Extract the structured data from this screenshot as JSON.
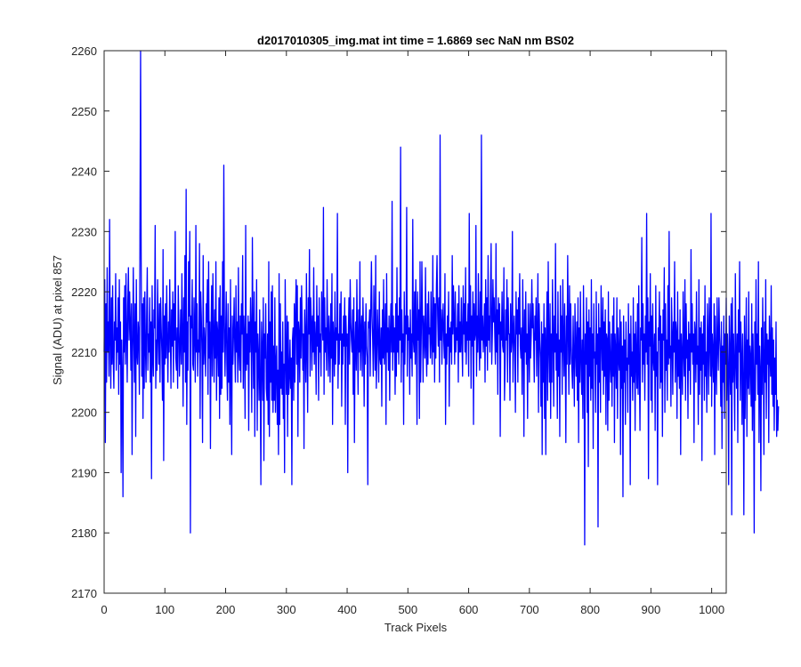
{
  "chart_data": {
    "type": "line",
    "title": "d2017010305_img.mat int time = 1.6869 sec  NaN nm BS02",
    "xlabel": "Track Pixels",
    "ylabel": "Signal (ADU) at pixel 857",
    "xlim": [
      0,
      1024
    ],
    "ylim": [
      2170,
      2260
    ],
    "xticks": [
      0,
      100,
      200,
      300,
      400,
      500,
      600,
      700,
      800,
      900,
      1000
    ],
    "yticks": [
      2170,
      2180,
      2190,
      2200,
      2210,
      2220,
      2230,
      2240,
      2250,
      2260
    ],
    "grid": false,
    "series": [
      {
        "color": "#0000ff",
        "x_start": 0,
        "x_step": 1,
        "values": [
          2210,
          2222,
          2195,
          2218,
          2205,
          2224,
          2210,
          2215,
          2206,
          2232,
          2212,
          2204,
          2219,
          2208,
          2221,
          2209,
          2204,
          2215,
          2212,
          2223,
          2207,
          2214,
          2210,
          2219,
          2203,
          2222,
          2208,
          2215,
          2190,
          2212,
          2205,
          2186,
          2219,
          2210,
          2221,
          2208,
          2223,
          2213,
          2205,
          2218,
          2224,
          2212,
          2220,
          2215,
          2207,
          2218,
          2193,
          2210,
          2224,
          2212,
          2205,
          2218,
          2196,
          2222,
          2210,
          2208,
          2215,
          2213,
          2203,
          2230,
          2260,
          2225,
          2206,
          2218,
          2199,
          2219,
          2204,
          2220,
          2211,
          2205,
          2216,
          2224,
          2207,
          2213,
          2210,
          2219,
          2205,
          2215,
          2189,
          2221,
          2210,
          2206,
          2217,
          2214,
          2231,
          2204,
          2212,
          2207,
          2222,
          2213,
          2208,
          2218,
          2205,
          2219,
          2214,
          2210,
          2202,
          2227,
          2192,
          2216,
          2208,
          2218,
          2209,
          2221,
          2212,
          2205,
          2215,
          2210,
          2222,
          2213,
          2204,
          2217,
          2211,
          2220,
          2205,
          2218,
          2212,
          2230,
          2209,
          2207,
          2214,
          2204,
          2221,
          2215,
          2206,
          2211,
          2217,
          2208,
          2223,
          2213,
          2201,
          2219,
          2210,
          2226,
          2205,
          2237,
          2198,
          2215,
          2207,
          2225,
          2216,
          2230,
          2180,
          2216,
          2214,
          2222,
          2208,
          2207,
          2219,
          2213,
          2205,
          2231,
          2210,
          2218,
          2206,
          2212,
          2210,
          2228,
          2199,
          2220,
          2216,
          2210,
          2195,
          2226,
          2208,
          2214,
          2211,
          2206,
          2218,
          2215,
          2222,
          2203,
          2225,
          2209,
          2215,
          2194,
          2213,
          2221,
          2206,
          2223,
          2213,
          2205,
          2217,
          2209,
          2225,
          2202,
          2215,
          2213,
          2206,
          2219,
          2199,
          2221,
          2203,
          2216,
          2204,
          2225,
          2210,
          2241,
          2215,
          2206,
          2213,
          2220,
          2208,
          2202,
          2218,
          2205,
          2214,
          2198,
          2222,
          2206,
          2193,
          2216,
          2208,
          2213,
          2219,
          2211,
          2205,
          2221,
          2210,
          2215,
          2205,
          2224,
          2210,
          2207,
          2216,
          2205,
          2218,
          2213,
          2226,
          2204,
          2216,
          2212,
          2199,
          2231,
          2207,
          2213,
          2208,
          2216,
          2197,
          2215,
          2210,
          2219,
          2213,
          2200,
          2229,
          2213,
          2204,
          2220,
          2196,
          2215,
          2210,
          2222,
          2197,
          2213,
          2209,
          2202,
          2217,
          2205,
          2188,
          2215,
          2210,
          2202,
          2219,
          2192,
          2213,
          2209,
          2218,
          2204,
          2202,
          2213,
          2198,
          2225,
          2196,
          2215,
          2205,
          2220,
          2202,
          2221,
          2200,
          2211,
          2202,
          2219,
          2200,
          2208,
          2211,
          2198,
          2207,
          2193,
          2223,
          2198,
          2218,
          2204,
          2210,
          2203,
          2215,
          2199,
          2208,
          2190,
          2222,
          2210,
          2203,
          2216,
          2196,
          2215,
          2203,
          2206,
          2212,
          2204,
          2209,
          2188,
          2212,
          2214,
          2202,
          2218,
          2205,
          2216,
          2222,
          2208,
          2221,
          2196,
          2215,
          2213,
          2205,
          2219,
          2209,
          2221,
          2215,
          2207,
          2213,
          2194,
          2217,
          2212,
          2205,
          2223,
          2210,
          2200,
          2219,
          2213,
          2227,
          2206,
          2219,
          2215,
          2207,
          2216,
          2210,
          2224,
          2208,
          2215,
          2212,
          2203,
          2221,
          2211,
          2216,
          2202,
          2219,
          2210,
          2213,
          2206,
          2220,
          2215,
          2212,
          2234,
          2203,
          2219,
          2210,
          2214,
          2207,
          2222,
          2213,
          2206,
          2216,
          2212,
          2205,
          2218,
          2209,
          2223,
          2198,
          2215,
          2212,
          2206,
          2220,
          2208,
          2214,
          2212,
          2233,
          2204,
          2213,
          2208,
          2218,
          2212,
          2220,
          2201,
          2213,
          2208,
          2216,
          2211,
          2219,
          2198,
          2216,
          2211,
          2213,
          2190,
          2213,
          2219,
          2208,
          2222,
          2215,
          2212,
          2210,
          2217,
          2203,
          2219,
          2195,
          2211,
          2215,
          2207,
          2222,
          2212,
          2203,
          2217,
          2210,
          2225,
          2207,
          2213,
          2216,
          2206,
          2219,
          2213,
          2201,
          2215,
          2208,
          2218,
          2211,
          2209,
          2188,
          2215,
          2214,
          2217,
          2206,
          2218,
          2225,
          2216,
          2212,
          2206,
          2221,
          2213,
          2207,
          2226,
          2204,
          2210,
          2217,
          2212,
          2205,
          2220,
          2209,
          2208,
          2214,
          2201,
          2217,
          2209,
          2222,
          2208,
          2212,
          2218,
          2198,
          2223,
          2210,
          2214,
          2207,
          2216,
          2202,
          2213,
          2218,
          2210,
          2235,
          2207,
          2216,
          2210,
          2214,
          2203,
          2218,
          2206,
          2224,
          2210,
          2216,
          2208,
          2219,
          2212,
          2244,
          2205,
          2217,
          2210,
          2213,
          2198,
          2220,
          2208,
          2216,
          2213,
          2234,
          2206,
          2216,
          2212,
          2214,
          2203,
          2217,
          2209,
          2213,
          2206,
          2232,
          2212,
          2210,
          2220,
          2208,
          2222,
          2214,
          2198,
          2220,
          2212,
          2217,
          2199,
          2225,
          2205,
          2213,
          2225,
          2216,
          2205,
          2216,
          2213,
          2209,
          2224,
          2211,
          2206,
          2218,
          2208,
          2220,
          2213,
          2214,
          2209,
          2220,
          2212,
          2208,
          2226,
          2210,
          2219,
          2205,
          2218,
          2209,
          2221,
          2226,
          2216,
          2211,
          2219,
          2205,
          2246,
          2212,
          2217,
          2208,
          2215,
          2218,
          2212,
          2209,
          2223,
          2198,
          2213,
          2208,
          2216,
          2211,
          2220,
          2201,
          2214,
          2210,
          2215,
          2208,
          2226,
          2213,
          2221,
          2215,
          2208,
          2220,
          2210,
          2214,
          2212,
          2218,
          2205,
          2221,
          2210,
          2215,
          2210,
          2219,
          2212,
          2206,
          2221,
          2213,
          2218,
          2210,
          2224,
          2208,
          2215,
          2212,
          2218,
          2206,
          2233,
          2212,
          2221,
          2204,
          2216,
          2211,
          2220,
          2198,
          2218,
          2212,
          2213,
          2231,
          2206,
          2216,
          2210,
          2223,
          2213,
          2207,
          2220,
          2209,
          2246,
          2212,
          2216,
          2210,
          2213,
          2218,
          2205,
          2222,
          2211,
          2219,
          2207,
          2226,
          2212,
          2216,
          2210,
          2220,
          2228,
          2208,
          2213,
          2222,
          2215,
          2219,
          2213,
          2208,
          2228,
          2210,
          2217,
          2203,
          2219,
          2213,
          2218,
          2196,
          2215,
          2212,
          2220,
          2211,
          2210,
          2224,
          2202,
          2208,
          2217,
          2212,
          2222,
          2205,
          2219,
          2213,
          2213,
          2202,
          2218,
          2210,
          2212,
          2230,
          2205,
          2213,
          2216,
          2210,
          2200,
          2220,
          2213,
          2217,
          2205,
          2219,
          2213,
          2223,
          2211,
          2209,
          2214,
          2203,
          2222,
          2213,
          2196,
          2217,
          2210,
          2220,
          2208,
          2213,
          2199,
          2218,
          2212,
          2205,
          2218,
          2209,
          2213,
          2222,
          2214,
          2218,
          2212,
          2205,
          2216,
          2212,
          2219,
          2206,
          2213,
          2223,
          2200,
          2218,
          2212,
          2209,
          2201,
          2215,
          2193,
          2213,
          2205,
          2218,
          2199,
          2214,
          2193,
          2212,
          2220,
          2202,
          2225,
          2211,
          2205,
          2218,
          2199,
          2213,
          2205,
          2222,
          2213,
          2201,
          2216,
          2210,
          2228,
          2207,
          2213,
          2199,
          2220,
          2206,
          2212,
          2196,
          2221,
          2210,
          2216,
          2203,
          2222,
          2212,
          2206,
          2218,
          2210,
          2195,
          2216,
          2208,
          2226,
          2213,
          2203,
          2221,
          2208,
          2218,
          2211,
          2207,
          2204,
          2216,
          2209,
          2201,
          2218,
          2211,
          2206,
          2215,
          2202,
          2219,
          2195,
          2214,
          2205,
          2220,
          2209,
          2203,
          2212,
          2199,
          2221,
          2210,
          2178,
          2213,
          2208,
          2219,
          2200,
          2215,
          2191,
          2217,
          2206,
          2214,
          2202,
          2222,
          2204,
          2213,
          2194,
          2218,
          2209,
          2210,
          2200,
          2220,
          2208,
          2213,
          2181,
          2218,
          2205,
          2214,
          2200,
          2221,
          2213,
          2207,
          2219,
          2203,
          2215,
          2206,
          2217,
          2198,
          2213,
          2212,
          2197,
          2220,
          2202,
          2215,
          2208,
          2205,
          2213,
          2201,
          2216,
          2206,
          2219,
          2195,
          2213,
          2210,
          2204,
          2219,
          2199,
          2214,
          2209,
          2207,
          2217,
          2193,
          2215,
          2204,
          2211,
          2186,
          2216,
          2205,
          2212,
          2198,
          2215,
          2207,
          2209,
          2200,
          2218,
          2208,
          2213,
          2188,
          2216,
          2206,
          2210,
          2202,
          2219,
          2205,
          2213,
          2197,
          2215,
          2209,
          2204,
          2218,
          2203,
          2221,
          2207,
          2197,
          2214,
          2212,
          2229,
          2205,
          2218,
          2208,
          2213,
          2202,
          2216,
          2210,
          2233,
          2208,
          2219,
          2189,
          2215,
          2211,
          2223,
          2202,
          2216,
          2200,
          2218,
          2209,
          2207,
          2213,
          2197,
          2221,
          2206,
          2210,
          2188,
          2214,
          2212,
          2220,
          2204,
          2216,
          2205,
          2213,
          2196,
          2217,
          2212,
          2224,
          2200,
          2218,
          2207,
          2212,
          2202,
          2221,
          2208,
          2230,
          2209,
          2211,
          2201,
          2219,
          2213,
          2203,
          2215,
          2210,
          2225,
          2205,
          2215,
          2213,
          2199,
          2220,
          2206,
          2212,
          2204,
          2217,
          2193,
          2213,
          2209,
          2203,
          2220,
          2210,
          2206,
          2222,
          2202,
          2218,
          2209,
          2212,
          2199,
          2215,
          2207,
          2213,
          2203,
          2227,
          2210,
          2218,
          2208,
          2213,
          2195,
          2215,
          2213,
          2205,
          2220,
          2208,
          2211,
          2198,
          2222,
          2203,
          2214,
          2207,
          2215,
          2192,
          2213,
          2208,
          2216,
          2202,
          2221,
          2206,
          2210,
          2200,
          2218,
          2212,
          2203,
          2219,
          2212,
          2206,
          2233,
          2201,
          2213,
          2210,
          2205,
          2218,
          2193,
          2216,
          2209,
          2203,
          2219,
          2211,
          2207,
          2219,
          2213,
          2210,
          2201,
          2215,
          2194,
          2211,
          2205,
          2216,
          2199,
          2213,
          2208,
          2219,
          2202,
          2213,
          2207,
          2188,
          2216,
          2209,
          2203,
          2218,
          2183,
          2219,
          2205,
          2213,
          2207,
          2197,
          2223,
          2209,
          2204,
          2213,
          2195,
          2217,
          2210,
          2225,
          2202,
          2215,
          2209,
          2198,
          2213,
          2205,
          2183,
          2216,
          2199,
          2209,
          2219,
          2196,
          2212,
          2204,
          2220,
          2203,
          2211,
          2209,
          2201,
          2218,
          2197,
          2213,
          2206,
          2180,
          2215,
          2202,
          2222,
          2208,
          2213,
          2203,
          2225,
          2195,
          2211,
          2207,
          2187,
          2214,
          2203,
          2219,
          2209,
          2193,
          2215,
          2205,
          2222,
          2199,
          2213,
          2208,
          2212,
          2195,
          2216,
          2210,
          2206,
          2221,
          2203,
          2214,
          2201,
          2212,
          2197,
          2209,
          2203,
          2215,
          2196,
          2202,
          2197,
          2201
        ]
      }
    ]
  }
}
